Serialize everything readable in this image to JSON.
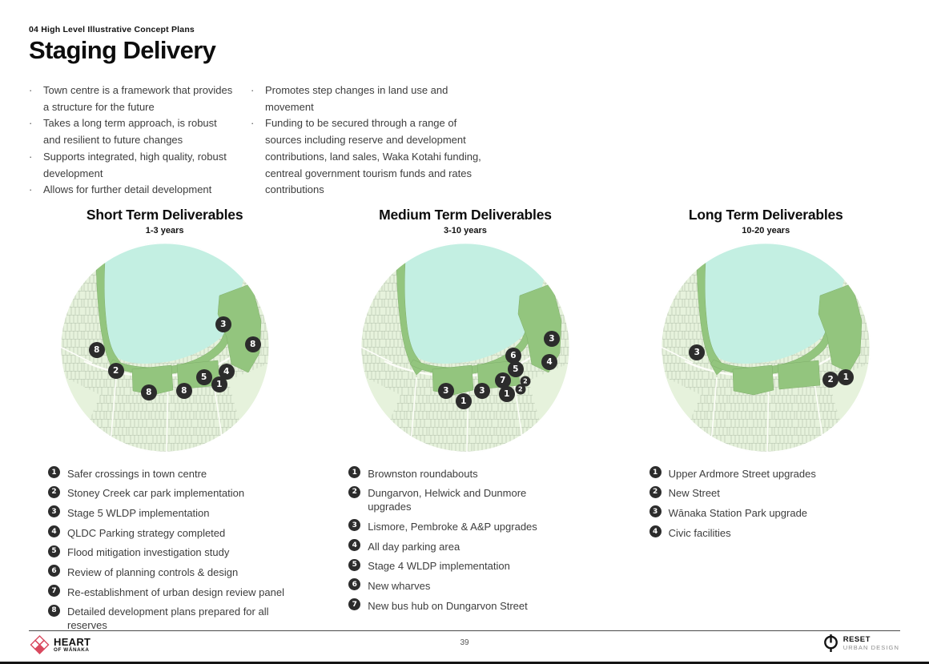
{
  "header": {
    "kicker": "04 High Level Illustrative Concept Plans",
    "title": "Staging Delivery"
  },
  "intro_bullets_col1": [
    "Town centre is a framework that provides a structure for  the future",
    "Takes a long term approach, is robust and resilient to future changes",
    "Supports integrated, high quality, robust development",
    "Allows for further detail development"
  ],
  "intro_bullets_col2": [
    "Promotes step changes in land use and movement",
    "Funding to be secured through a range of sources including reserve and development contributions, land sales, Waka Kotahi funding, centreal government tourism funds and rates contributions"
  ],
  "sections": [
    {
      "title": "Short Term Deliverables",
      "subtitle": "1-3 years",
      "markers": [
        {
          "n": "8",
          "x": 17.6,
          "y": 51.1,
          "size": "lg"
        },
        {
          "n": "2",
          "x": 26.7,
          "y": 61.1,
          "size": "lg"
        },
        {
          "n": "8",
          "x": 42.4,
          "y": 71.4,
          "size": "lg"
        },
        {
          "n": "8",
          "x": 59.2,
          "y": 70.6,
          "size": "lg"
        },
        {
          "n": "5",
          "x": 68.7,
          "y": 64.1,
          "size": "lg"
        },
        {
          "n": "1",
          "x": 76.0,
          "y": 67.6,
          "size": "lg"
        },
        {
          "n": "4",
          "x": 79.4,
          "y": 61.5,
          "size": "lg"
        },
        {
          "n": "3",
          "x": 77.9,
          "y": 38.9,
          "size": "lg"
        },
        {
          "n": "8",
          "x": 92.0,
          "y": 48.5,
          "size": "lg"
        }
      ],
      "legend": [
        {
          "n": "1",
          "label": "Safer crossings in town centre"
        },
        {
          "n": "2",
          "label": "Stoney Creek car park implementation"
        },
        {
          "n": "3",
          "label": "Stage 5 WLDP implementation"
        },
        {
          "n": "4",
          "label": "QLDC Parking strategy completed"
        },
        {
          "n": "5",
          "label": "Flood mitigation investigation study"
        },
        {
          "n": "6",
          "label": "Review of planning controls & design"
        },
        {
          "n": "7",
          "label": "Re-establishment of urban design review panel"
        },
        {
          "n": "8",
          "label": "Detailed development plans prepared for all reserves"
        }
      ]
    },
    {
      "title": "Medium Term Deliverables",
      "subtitle": "3-10 years",
      "markers": [
        {
          "n": "3",
          "x": 40.8,
          "y": 70.6,
          "size": "lg"
        },
        {
          "n": "1",
          "x": 49.2,
          "y": 75.6,
          "size": "lg"
        },
        {
          "n": "3",
          "x": 58.0,
          "y": 70.6,
          "size": "lg"
        },
        {
          "n": "7",
          "x": 67.9,
          "y": 65.6,
          "size": "lg"
        },
        {
          "n": "1",
          "x": 69.8,
          "y": 72.1,
          "size": "lg"
        },
        {
          "n": "6",
          "x": 72.9,
          "y": 53.8,
          "size": "lg"
        },
        {
          "n": "5",
          "x": 74.0,
          "y": 60.3,
          "size": "lg"
        },
        {
          "n": "2",
          "x": 78.6,
          "y": 66.0,
          "size": "sm"
        },
        {
          "n": "2",
          "x": 76.3,
          "y": 69.8,
          "size": "sm"
        },
        {
          "n": "4",
          "x": 90.1,
          "y": 56.9,
          "size": "lg"
        },
        {
          "n": "3",
          "x": 91.2,
          "y": 45.8,
          "size": "lg"
        }
      ],
      "legend": [
        {
          "n": "1",
          "label": "Brownston roundabouts"
        },
        {
          "n": "2",
          "label": "Dungarvon, Helwick and Dunmore upgrades"
        },
        {
          "n": "3",
          "label": "Lismore, Pembroke & A&P upgrades"
        },
        {
          "n": "4",
          "label": "All day parking area"
        },
        {
          "n": "5",
          "label": "Stage 4 WLDP implementation"
        },
        {
          "n": "6",
          "label": "New wharves"
        },
        {
          "n": "7",
          "label": "New bus hub on Dungarvon Street"
        }
      ]
    },
    {
      "title": "Long Term Deliverables",
      "subtitle": "10-20 years",
      "markers": [
        {
          "n": "3",
          "x": 17.2,
          "y": 52.3,
          "size": "lg"
        },
        {
          "n": "2",
          "x": 80.9,
          "y": 65.3,
          "size": "lg"
        },
        {
          "n": "1",
          "x": 88.2,
          "y": 64.1,
          "size": "lg"
        }
      ],
      "legend": [
        {
          "n": "1",
          "label": "Upper Ardmore Street upgrades"
        },
        {
          "n": "2",
          "label": "New Street"
        },
        {
          "n": "3",
          "label": "Wānaka Station Park upgrade"
        },
        {
          "n": "4",
          "label": "Civic facilities"
        }
      ]
    }
  ],
  "footer": {
    "page_number": "39",
    "heart_logo": {
      "line1": "HEART",
      "line2": "OF WĀNAKA"
    },
    "reset_logo": {
      "line1": "RESET",
      "line2": "URBAN DESIGN"
    }
  },
  "icons": {
    "heart_logo_icon": "diamonds-heart-icon",
    "reset_logo_icon": "power-circle-icon"
  },
  "colors": {
    "lake": "#c3efe2",
    "land": "#e6f2dc",
    "park_green": "#93c57e",
    "marker": "#2c2c2c",
    "logo_red": "#d9495f",
    "text_body": "#3d3d3d"
  }
}
